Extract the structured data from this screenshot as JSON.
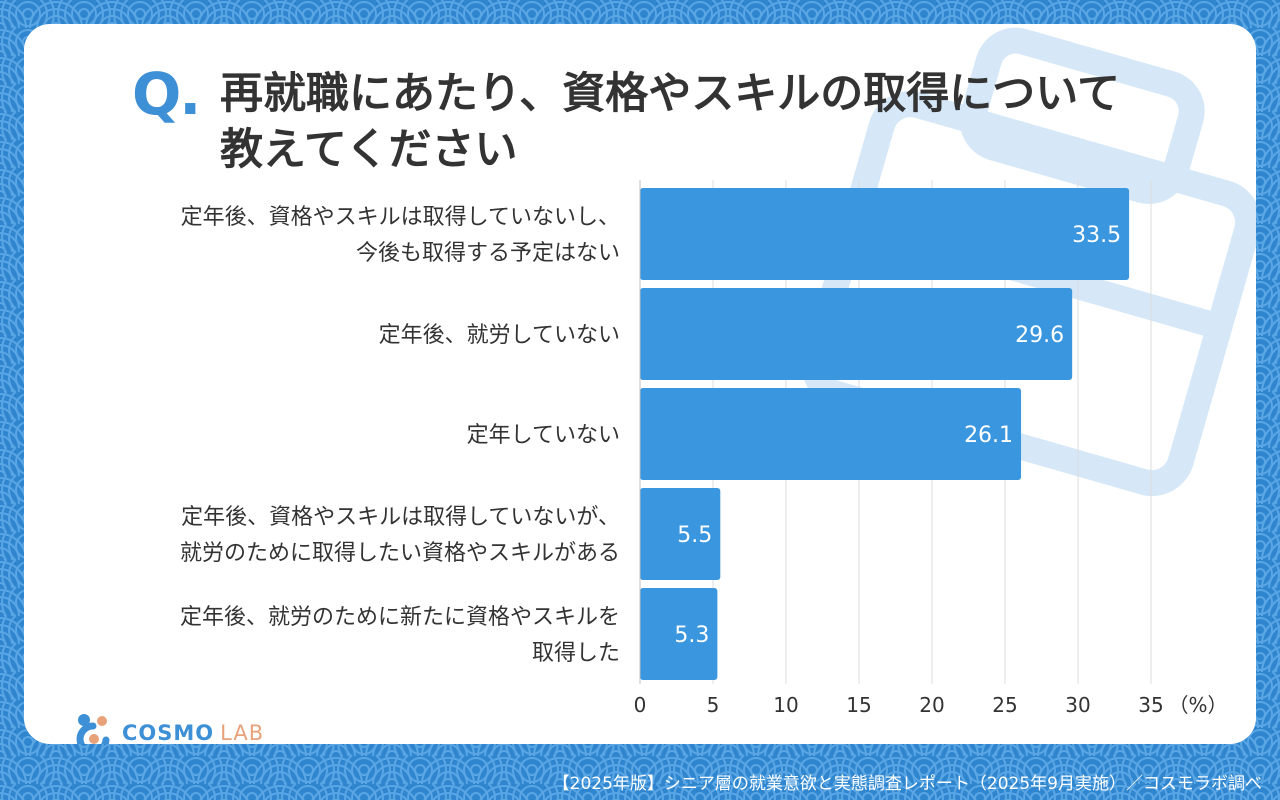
{
  "colors": {
    "background": "#2f86cf",
    "bar": "#3a96de",
    "accent": "#3d8fd6"
  },
  "question": {
    "mark": "Q.",
    "title_line1": "再就職にあたり、資格やスキルの取得について",
    "title_line2": "教えてください"
  },
  "chart_data": {
    "type": "bar",
    "orientation": "horizontal",
    "title": "再就職にあたり、資格やスキルの取得について教えてください",
    "unit_label": "（%）",
    "xlim": [
      0,
      35
    ],
    "ticks": [
      "0",
      "5",
      "10",
      "15",
      "20",
      "25",
      "30",
      "35"
    ],
    "categories": [
      {
        "lines": [
          "定年後、資格やスキルは取得していないし、",
          "今後も取得する予定はない"
        ],
        "value": 33.5
      },
      {
        "lines": [
          "定年後、就労していない"
        ],
        "value": 29.6
      },
      {
        "lines": [
          "定年していない"
        ],
        "value": 26.1
      },
      {
        "lines": [
          "定年後、資格やスキルは取得していないが、",
          "就労のために取得したい資格やスキルがある"
        ],
        "value": 5.5
      },
      {
        "lines": [
          "定年後、就労のために新たに資格やスキルを",
          "取得した"
        ],
        "value": 5.3
      }
    ]
  },
  "logo": {
    "name": "COSMO",
    "suffix": "LAB"
  },
  "footer": {
    "text": "【2025年版】シニア層の就業意欲と実態調査レポート（2025年9月実施）／コスモラボ調べ"
  }
}
